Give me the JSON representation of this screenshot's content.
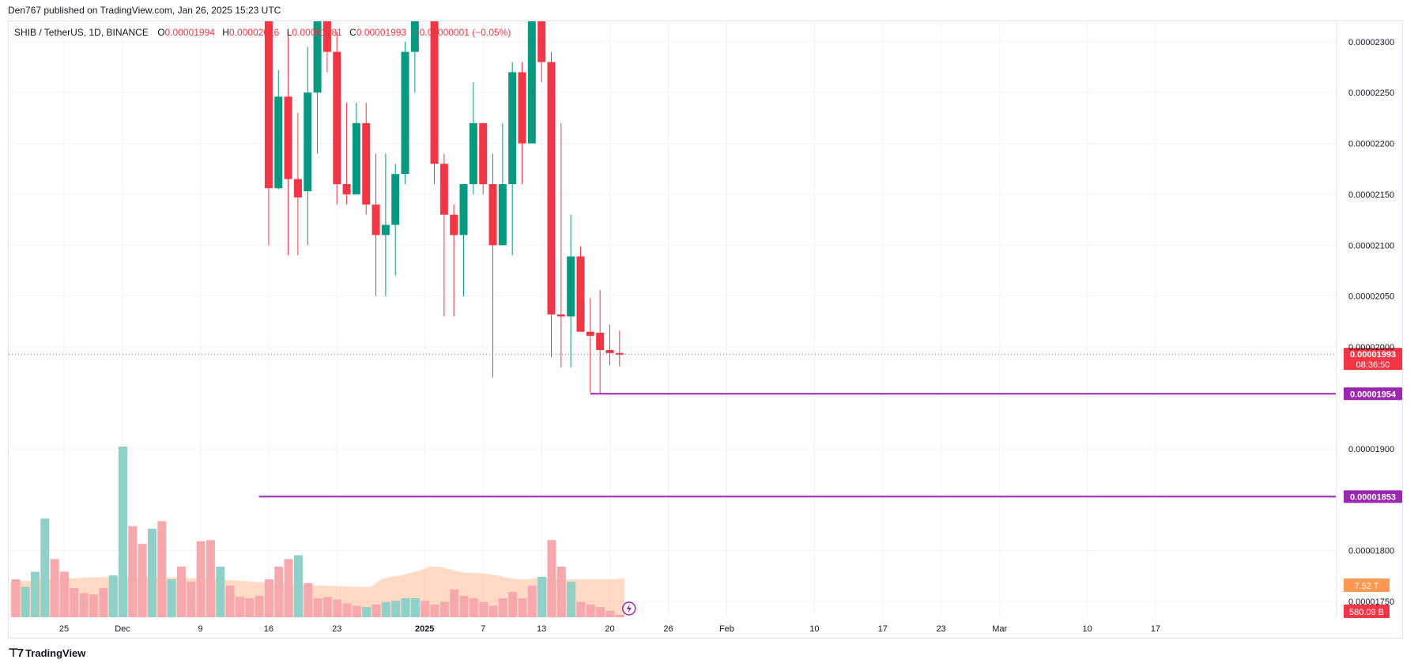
{
  "header": {
    "published_by": "Den767 published on TradingView.com, Jan 26, 2025 15:23 UTC"
  },
  "legend": {
    "symbol": "SHIB / TetherUS, 1D, BINANCE",
    "open_label": "O",
    "open": "0.00001994",
    "high_label": "H",
    "high": "0.00002016",
    "low_label": "L",
    "low": "0.00001981",
    "close_label": "C",
    "close": "0.00001993",
    "change": "−0.00000001 (−0.05%)"
  },
  "footer": {
    "brand": "TradingView"
  },
  "colors": {
    "up": "#089981",
    "down": "#f23645",
    "vol_up": "#8fd0c8",
    "vol_down": "#f7a8ac",
    "vol_ma": "#ffa36c",
    "level_line": "#9c27b0",
    "grid": "#f0f3fa"
  },
  "chart_data": {
    "type": "candlestick",
    "y_range": [
      1.75e-05,
      2.32e-05
    ],
    "y_ticks": [
      "0.00002300",
      "0.00002250",
      "0.00002200",
      "0.00002150",
      "0.00002100",
      "0.00002050",
      "0.00002000",
      "0.00001900",
      "0.00001800",
      "0.00001750"
    ],
    "y_tick_values": [
      2.3e-05,
      2.25e-05,
      2.2e-05,
      2.15e-05,
      2.1e-05,
      2.05e-05,
      2e-05,
      1.9e-05,
      1.8e-05,
      1.75e-05
    ],
    "x_ticks": [
      {
        "label": "25",
        "day": 0
      },
      {
        "label": "Dec",
        "day": 6
      },
      {
        "label": "9",
        "day": 14
      },
      {
        "label": "16",
        "day": 21
      },
      {
        "label": "23",
        "day": 28
      },
      {
        "label": "2025",
        "day": 37
      },
      {
        "label": "7",
        "day": 43
      },
      {
        "label": "13",
        "day": 49
      },
      {
        "label": "20",
        "day": 56
      },
      {
        "label": "26",
        "day": 62
      },
      {
        "label": "Feb",
        "day": 68
      },
      {
        "label": "10",
        "day": 77
      },
      {
        "label": "17",
        "day": 84
      },
      {
        "label": "23",
        "day": 90
      },
      {
        "label": "Mar",
        "day": 96
      },
      {
        "label": "10",
        "day": 105
      },
      {
        "label": "17",
        "day": 112
      }
    ],
    "candles": [
      {
        "day": 21,
        "o": 2.32e-05,
        "h": 2.35e-05,
        "l": 2.1e-05,
        "c": 2.156e-05
      },
      {
        "day": 22,
        "o": 2.156e-05,
        "h": 2.272e-05,
        "l": 2.155e-05,
        "c": 2.246e-05
      },
      {
        "day": 23,
        "o": 2.246e-05,
        "h": 2.31e-05,
        "l": 2.09e-05,
        "c": 2.165e-05
      },
      {
        "day": 24,
        "o": 2.165e-05,
        "h": 2.23e-05,
        "l": 2.09e-05,
        "c": 2.147e-05
      },
      {
        "day": 25,
        "o": 2.153e-05,
        "h": 2.295e-05,
        "l": 2.1e-05,
        "c": 2.25e-05
      },
      {
        "day": 26,
        "o": 2.25e-05,
        "h": 2.32e-05,
        "l": 2.19e-05,
        "c": 2.32e-05
      },
      {
        "day": 27,
        "o": 2.32e-05,
        "h": 2.36e-05,
        "l": 2.27e-05,
        "c": 2.29e-05
      },
      {
        "day": 28,
        "o": 2.29e-05,
        "h": 2.31e-05,
        "l": 2.14e-05,
        "c": 2.16e-05
      },
      {
        "day": 29,
        "o": 2.16e-05,
        "h": 2.24e-05,
        "l": 2.14e-05,
        "c": 2.15e-05
      },
      {
        "day": 30,
        "o": 2.15e-05,
        "h": 2.24e-05,
        "l": 2.15e-05,
        "c": 2.22e-05
      },
      {
        "day": 31,
        "o": 2.22e-05,
        "h": 2.24e-05,
        "l": 2.13e-05,
        "c": 2.14e-05
      },
      {
        "day": 32,
        "o": 2.14e-05,
        "h": 2.19e-05,
        "l": 2.05e-05,
        "c": 2.11e-05
      },
      {
        "day": 33,
        "o": 2.11e-05,
        "h": 2.19e-05,
        "l": 2.05e-05,
        "c": 2.12e-05
      },
      {
        "day": 34,
        "o": 2.12e-05,
        "h": 2.18e-05,
        "l": 2.07e-05,
        "c": 2.17e-05
      },
      {
        "day": 35,
        "o": 2.17e-05,
        "h": 2.3e-05,
        "l": 2.16e-05,
        "c": 2.29e-05
      },
      {
        "day": 36,
        "o": 2.29e-05,
        "h": 2.36e-05,
        "l": 2.25e-05,
        "c": 2.33e-05
      },
      {
        "day": 38,
        "o": 2.33e-05,
        "h": 2.36e-05,
        "l": 2.16e-05,
        "c": 2.18e-05
      },
      {
        "day": 39,
        "o": 2.18e-05,
        "h": 2.19e-05,
        "l": 2.03e-05,
        "c": 2.13e-05
      },
      {
        "day": 40,
        "o": 2.13e-05,
        "h": 2.14e-05,
        "l": 2.03e-05,
        "c": 2.11e-05
      },
      {
        "day": 41,
        "o": 2.11e-05,
        "h": 2.16e-05,
        "l": 2.05e-05,
        "c": 2.16e-05
      },
      {
        "day": 42,
        "o": 2.16e-05,
        "h": 2.26e-05,
        "l": 2.15e-05,
        "c": 2.22e-05
      },
      {
        "day": 43,
        "o": 2.22e-05,
        "h": 2.22e-05,
        "l": 2.15e-05,
        "c": 2.16e-05
      },
      {
        "day": 44,
        "o": 2.16e-05,
        "h": 2.19e-05,
        "l": 1.97e-05,
        "c": 2.1e-05
      },
      {
        "day": 45,
        "o": 2.1e-05,
        "h": 2.22e-05,
        "l": 2.1e-05,
        "c": 2.16e-05
      },
      {
        "day": 46,
        "o": 2.16e-05,
        "h": 2.28e-05,
        "l": 2.09e-05,
        "c": 2.27e-05
      },
      {
        "day": 47,
        "o": 2.27e-05,
        "h": 2.28e-05,
        "l": 2.16e-05,
        "c": 2.2e-05
      },
      {
        "day": 48,
        "o": 2.2e-05,
        "h": 2.36e-05,
        "l": 2.2e-05,
        "c": 2.36e-05
      },
      {
        "day": 49,
        "o": 2.36e-05,
        "h": 2.36e-05,
        "l": 2.26e-05,
        "c": 2.28e-05
      },
      {
        "day": 50,
        "o": 2.28e-05,
        "h": 2.29e-05,
        "l": 1.99e-05,
        "c": 2.032e-05
      },
      {
        "day": 51,
        "o": 2.032e-05,
        "h": 2.22e-05,
        "l": 1.98e-05,
        "c": 2.03e-05
      },
      {
        "day": 52,
        "o": 2.03e-05,
        "h": 2.13e-05,
        "l": 1.98e-05,
        "c": 2.089e-05
      },
      {
        "day": 53,
        "o": 2.089e-05,
        "h": 2.099e-05,
        "l": 2.015e-05,
        "c": 2.015e-05
      },
      {
        "day": 54,
        "o": 2.015e-05,
        "h": 2.048e-05,
        "l": 1.955e-05,
        "c": 2.011e-05
      },
      {
        "day": 55,
        "o": 2.014e-05,
        "h": 2.056e-05,
        "l": 1.954e-05,
        "c": 1.997e-05
      },
      {
        "day": 56,
        "o": 1.997e-05,
        "h": 2.022e-05,
        "l": 1.982e-05,
        "c": 1.994e-05
      },
      {
        "day": 57,
        "o": 1.994e-05,
        "h": 2.016e-05,
        "l": 1.981e-05,
        "c": 1.993e-05
      }
    ],
    "volumes": [
      {
        "day": -5,
        "v": 0.3,
        "up": false
      },
      {
        "day": -4,
        "v": 0.24,
        "up": true
      },
      {
        "day": -3,
        "v": 0.36,
        "up": true
      },
      {
        "day": -2,
        "v": 0.78,
        "up": true
      },
      {
        "day": -1,
        "v": 0.46,
        "up": false
      },
      {
        "day": 0,
        "v": 0.36,
        "up": false
      },
      {
        "day": 1,
        "v": 0.23,
        "up": false
      },
      {
        "day": 2,
        "v": 0.19,
        "up": false
      },
      {
        "day": 3,
        "v": 0.18,
        "up": false
      },
      {
        "day": 4,
        "v": 0.23,
        "up": false
      },
      {
        "day": 5,
        "v": 0.33,
        "up": true
      },
      {
        "day": 6,
        "v": 1.35,
        "up": true
      },
      {
        "day": 7,
        "v": 0.72,
        "up": false
      },
      {
        "day": 8,
        "v": 0.58,
        "up": false
      },
      {
        "day": 9,
        "v": 0.7,
        "up": true
      },
      {
        "day": 10,
        "v": 0.76,
        "up": false
      },
      {
        "day": 11,
        "v": 0.3,
        "up": true
      },
      {
        "day": 12,
        "v": 0.4,
        "up": false
      },
      {
        "day": 13,
        "v": 0.28,
        "up": false
      },
      {
        "day": 14,
        "v": 0.6,
        "up": false
      },
      {
        "day": 15,
        "v": 0.61,
        "up": false
      },
      {
        "day": 16,
        "v": 0.4,
        "up": true
      },
      {
        "day": 17,
        "v": 0.25,
        "up": false
      },
      {
        "day": 18,
        "v": 0.16,
        "up": false
      },
      {
        "day": 19,
        "v": 0.15,
        "up": false
      },
      {
        "day": 20,
        "v": 0.17,
        "up": false
      },
      {
        "day": 21,
        "v": 0.3,
        "up": false
      },
      {
        "day": 22,
        "v": 0.4,
        "up": false
      },
      {
        "day": 23,
        "v": 0.46,
        "up": false
      },
      {
        "day": 24,
        "v": 0.49,
        "up": true
      },
      {
        "day": 25,
        "v": 0.27,
        "up": false
      },
      {
        "day": 26,
        "v": 0.15,
        "up": false
      },
      {
        "day": 27,
        "v": 0.16,
        "up": false
      },
      {
        "day": 28,
        "v": 0.14,
        "up": false
      },
      {
        "day": 29,
        "v": 0.11,
        "up": false
      },
      {
        "day": 30,
        "v": 0.09,
        "up": false
      },
      {
        "day": 31,
        "v": 0.08,
        "up": true
      },
      {
        "day": 32,
        "v": 0.1,
        "up": false
      },
      {
        "day": 33,
        "v": 0.12,
        "up": true
      },
      {
        "day": 34,
        "v": 0.13,
        "up": true
      },
      {
        "day": 35,
        "v": 0.15,
        "up": true
      },
      {
        "day": 36,
        "v": 0.15,
        "up": true
      },
      {
        "day": 37,
        "v": 0.13,
        "up": false
      },
      {
        "day": 38,
        "v": 0.1,
        "up": false
      },
      {
        "day": 39,
        "v": 0.12,
        "up": false
      },
      {
        "day": 40,
        "v": 0.22,
        "up": false
      },
      {
        "day": 41,
        "v": 0.17,
        "up": false
      },
      {
        "day": 42,
        "v": 0.15,
        "up": false
      },
      {
        "day": 43,
        "v": 0.12,
        "up": false
      },
      {
        "day": 44,
        "v": 0.09,
        "up": false
      },
      {
        "day": 45,
        "v": 0.15,
        "up": false
      },
      {
        "day": 46,
        "v": 0.2,
        "up": false
      },
      {
        "day": 47,
        "v": 0.15,
        "up": false
      },
      {
        "day": 48,
        "v": 0.25,
        "up": false
      },
      {
        "day": 49,
        "v": 0.32,
        "up": true
      },
      {
        "day": 50,
        "v": 0.61,
        "up": false
      },
      {
        "day": 51,
        "v": 0.4,
        "up": false
      },
      {
        "day": 52,
        "v": 0.28,
        "up": true
      },
      {
        "day": 53,
        "v": 0.12,
        "up": false
      },
      {
        "day": 54,
        "v": 0.1,
        "up": false
      },
      {
        "day": 55,
        "v": 0.08,
        "up": false
      },
      {
        "day": 56,
        "v": 0.05,
        "up": false
      },
      {
        "day": 57,
        "v": 0.02,
        "up": false
      }
    ],
    "volume_ma": [
      0.3,
      0.32,
      0.33,
      0.35,
      0.37,
      0.4,
      0.4,
      0.38,
      0.36,
      0.35,
      0.35,
      0.34,
      0.33,
      0.31,
      0.3,
      0.3,
      0.31,
      0.31,
      0.3,
      0.3,
      0.3,
      0.3,
      0.3,
      0.3,
      0.3,
      0.31
    ],
    "price_lines": [
      {
        "value": 1.993e-05,
        "label": "0.00001993",
        "countdown": "08:36:50",
        "style": "dotted",
        "color": "#f23645"
      },
      {
        "value": 1.954e-05,
        "label": "0.00001954",
        "from_day": 54,
        "style": "solid",
        "color": "#9c27b0"
      },
      {
        "value": 1.853e-05,
        "label": "0.00001853",
        "from_day": 20,
        "style": "solid",
        "color": "#9c27b0"
      }
    ],
    "volume_badges": [
      {
        "label": "7.52 T",
        "color": "#ff9850"
      },
      {
        "label": "580.09 B",
        "color": "#f23645"
      }
    ]
  }
}
